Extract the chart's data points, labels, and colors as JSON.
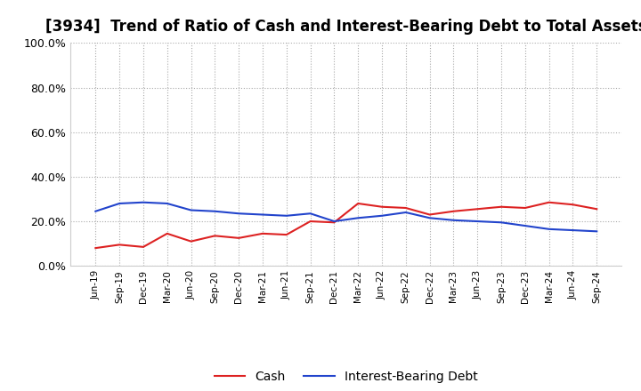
{
  "title": "[3934]  Trend of Ratio of Cash and Interest-Bearing Debt to Total Assets",
  "labels": [
    "Jun-19",
    "Sep-19",
    "Dec-19",
    "Mar-20",
    "Jun-20",
    "Sep-20",
    "Dec-20",
    "Mar-21",
    "Jun-21",
    "Sep-21",
    "Dec-21",
    "Mar-22",
    "Jun-22",
    "Sep-22",
    "Dec-22",
    "Mar-23",
    "Jun-23",
    "Sep-23",
    "Dec-23",
    "Mar-24",
    "Jun-24",
    "Sep-24"
  ],
  "cash": [
    8.0,
    9.5,
    8.5,
    14.5,
    11.0,
    13.5,
    12.5,
    14.5,
    14.0,
    20.0,
    19.5,
    28.0,
    26.5,
    26.0,
    23.0,
    24.5,
    25.5,
    26.5,
    26.0,
    28.5,
    27.5,
    25.5
  ],
  "interest_bearing_debt": [
    24.5,
    28.0,
    28.5,
    28.0,
    25.0,
    24.5,
    23.5,
    23.0,
    22.5,
    23.5,
    20.0,
    21.5,
    22.5,
    24.0,
    21.5,
    20.5,
    20.0,
    19.5,
    18.0,
    16.5,
    16.0,
    15.5
  ],
  "cash_color": "#dd2222",
  "debt_color": "#2244cc",
  "ylim": [
    0,
    100
  ],
  "yticks": [
    0,
    20,
    40,
    60,
    80,
    100
  ],
  "ytick_labels": [
    "0.0%",
    "20.0%",
    "40.0%",
    "60.0%",
    "80.0%",
    "100.0%"
  ],
  "background_color": "#ffffff",
  "plot_bg_color": "#ffffff",
  "grid_color": "#aaaaaa",
  "title_fontsize": 12,
  "legend_cash": "Cash",
  "legend_debt": "Interest-Bearing Debt"
}
